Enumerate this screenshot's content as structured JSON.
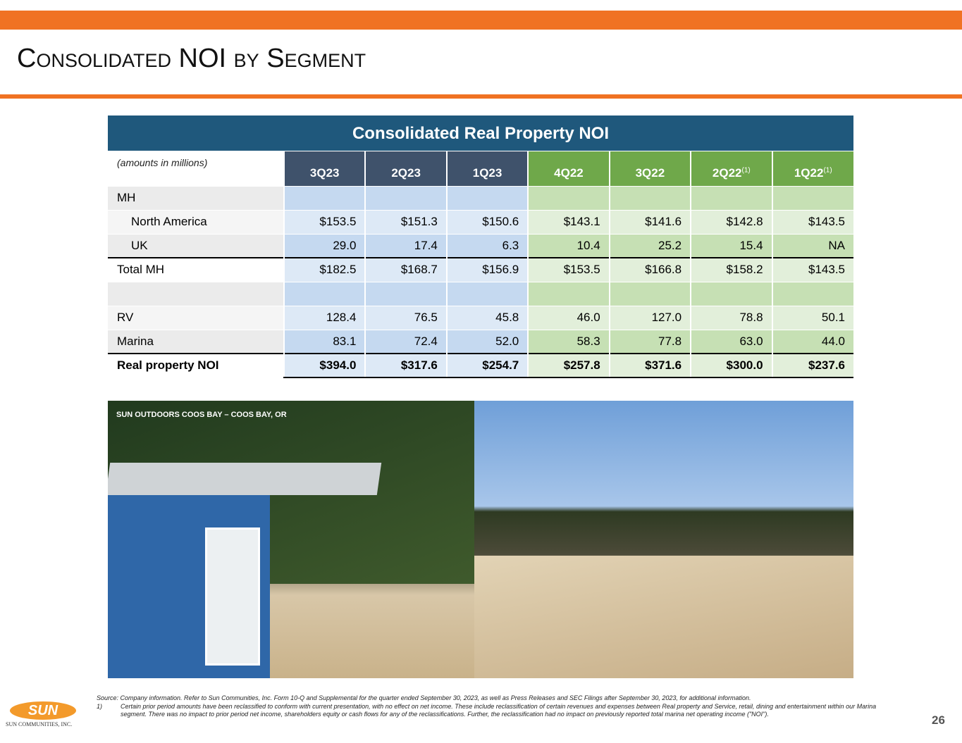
{
  "header": {
    "title": "Consolidated NOI by Segment"
  },
  "table": {
    "title": "Consolidated Real Property NOI",
    "units_note": "(amounts in millions)",
    "columns": [
      {
        "label": "3Q23"
      },
      {
        "label": "2Q23"
      },
      {
        "label": "1Q23"
      },
      {
        "label": "4Q22"
      },
      {
        "label": "3Q22"
      },
      {
        "label": "2Q22",
        "footnote": "(1)"
      },
      {
        "label": "1Q22",
        "footnote": "(1)"
      }
    ],
    "mh": {
      "label": "MH",
      "rows": [
        {
          "label": "North America",
          "values": [
            "$153.5",
            "$151.3",
            "$150.6",
            "$143.1",
            "$141.6",
            "$142.8",
            "$143.5"
          ]
        },
        {
          "label": "UK",
          "values": [
            "29.0",
            "17.4",
            "6.3",
            "10.4",
            "25.2",
            "15.4",
            "NA"
          ]
        }
      ]
    },
    "mh_total": {
      "label": "Total MH",
      "values": [
        "$182.5",
        "$168.7",
        "$156.9",
        "$153.5",
        "$166.8",
        "$158.2",
        "$143.5"
      ]
    },
    "other_rows": [
      {
        "label": "RV",
        "values": [
          "128.4",
          "76.5",
          "45.8",
          "46.0",
          "127.0",
          "78.8",
          "50.1"
        ]
      },
      {
        "label": "Marina",
        "values": [
          "83.1",
          "72.4",
          "52.0",
          "58.3",
          "77.8",
          "63.0",
          "44.0"
        ]
      }
    ],
    "grand_total": {
      "label": "Real property NOI",
      "values": [
        "$394.0",
        "$317.6",
        "$254.7",
        "$257.8",
        "$371.6",
        "$300.0",
        "$237.6"
      ]
    }
  },
  "photo": {
    "caption": "SUN OUTDOORS COOS BAY – COOS BAY, OR"
  },
  "footer": {
    "source": "Source: Company information.  Refer to Sun Communities, Inc. Form 10-Q and Supplemental for the quarter ended September 30, 2023, as well as Press Releases and SEC Filings after September 30, 2023, for additional information.",
    "footnote_marker": "1)",
    "footnote": "Certain prior period amounts have been reclassified to conform with current presentation, with no effect on net income. These include reclassification of certain revenues and expenses between Real property and Service, retail, dining and entertainment within our Marina segment. There was no impact to prior period net income, shareholders equity or cash flows for any of the reclassifications. Further, the reclassification had no impact on previously reported total marina net operating income (\"NOI\").",
    "logo": "SUN",
    "company": "SUN COMMUNITIES, INC.",
    "page_number": "26"
  }
}
